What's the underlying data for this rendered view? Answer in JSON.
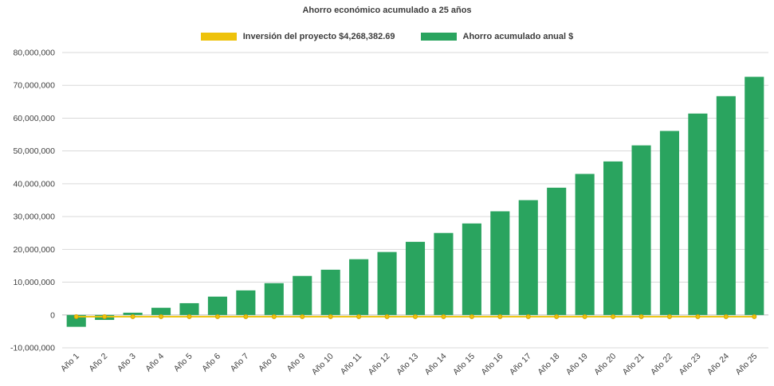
{
  "chart_data": {
    "type": "bar",
    "title": "Ahorro económico acumulado a 25 años",
    "categories": [
      "Año 1",
      "Año 2",
      "Año 3",
      "Año 4",
      "Año 5",
      "Año 6",
      "Año 7",
      "Año 8",
      "Año 9",
      "Año 10",
      "Año 11",
      "Año 12",
      "Año 13",
      "Año 14",
      "Año 15",
      "Año 16",
      "Año 17",
      "Año 18",
      "Año 19",
      "Año 20",
      "Año 21",
      "Año 22",
      "Año 23",
      "Año 24",
      "Año 25"
    ],
    "series": [
      {
        "name": "Inversión del proyecto $4,268,382.69",
        "type": "line",
        "color": "#eec20b",
        "marker_stroke": "#d19d00",
        "values": [
          -500000,
          -500000,
          -500000,
          -500000,
          -500000,
          -500000,
          -500000,
          -500000,
          -500000,
          -500000,
          -500000,
          -500000,
          -500000,
          -500000,
          -500000,
          -500000,
          -500000,
          -500000,
          -500000,
          -500000,
          -500000,
          -500000,
          -500000,
          -500000,
          -500000
        ]
      },
      {
        "name": "Ahorro acumulado anual $",
        "type": "bar",
        "color": "#2aa45f",
        "values": [
          -3600000,
          -1500000,
          700000,
          2200000,
          3600000,
          5600000,
          7500000,
          9700000,
          11900000,
          13800000,
          17000000,
          19200000,
          22300000,
          25000000,
          27900000,
          31600000,
          35000000,
          38800000,
          43000000,
          46800000,
          51700000,
          56100000,
          61400000,
          66700000,
          72600000
        ]
      }
    ],
    "ylim": [
      -10000000,
      80000000
    ],
    "y_ticks": [
      {
        "value": 80000000,
        "label": "80,000,000"
      },
      {
        "value": 70000000,
        "label": "70,000,000"
      },
      {
        "value": 60000000,
        "label": "60,000,000"
      },
      {
        "value": 50000000,
        "label": "50,000,000"
      },
      {
        "value": 40000000,
        "label": "40,000,000"
      },
      {
        "value": 30000000,
        "label": "30,000,000"
      },
      {
        "value": 20000000,
        "label": "20,000,000"
      },
      {
        "value": 10000000,
        "label": "10,000,000"
      },
      {
        "value": 0,
        "label": "0"
      },
      {
        "value": -10000000,
        "label": "-10,000,000"
      }
    ],
    "grid": true,
    "legend_position": "top",
    "xlabel": "",
    "ylabel": "",
    "colors": {
      "grid": "#d9d9d9",
      "zero_axis": "#bdbdbd",
      "text": "#3f3f3f"
    }
  }
}
